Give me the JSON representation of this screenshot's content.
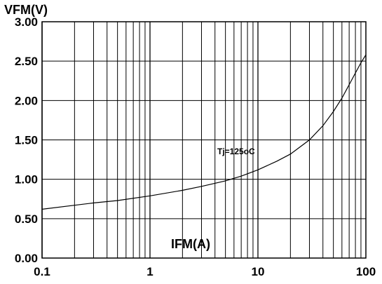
{
  "chart_data": {
    "type": "line",
    "title": "",
    "xlabel": "IFM(A)",
    "ylabel": "VFM(V)",
    "x_scale": "log",
    "xlim": [
      0.1,
      100
    ],
    "ylim": [
      0,
      3
    ],
    "x_ticks": [
      0.1,
      1,
      10,
      100
    ],
    "x_tick_labels": [
      "0.1",
      "1",
      "10",
      "100"
    ],
    "y_ticks": [
      0,
      0.5,
      1,
      1.5,
      2,
      2.5,
      3
    ],
    "y_tick_labels": [
      "0.00",
      "0.50",
      "1.00",
      "1.50",
      "2.00",
      "2.50",
      "3.00"
    ],
    "grid": true,
    "annotations": [
      {
        "text": "Tj=125oC",
        "x": 10,
        "y": 1.4
      }
    ],
    "series": [
      {
        "x": [
          0.1,
          0.2,
          0.3,
          0.5,
          1,
          2,
          3,
          5,
          7,
          10,
          15,
          20,
          30,
          40,
          50,
          60,
          70,
          80,
          90,
          100
        ],
        "y": [
          0.62,
          0.67,
          0.7,
          0.73,
          0.79,
          0.86,
          0.91,
          0.98,
          1.04,
          1.12,
          1.23,
          1.32,
          1.5,
          1.68,
          1.86,
          2.03,
          2.2,
          2.35,
          2.48,
          2.58
        ]
      }
    ]
  }
}
